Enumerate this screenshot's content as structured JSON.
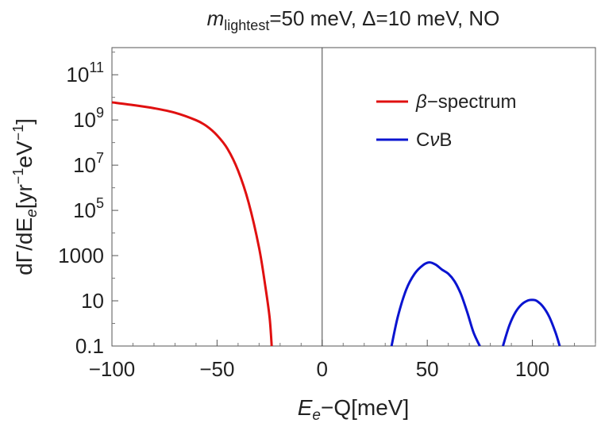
{
  "chart_data": {
    "type": "line",
    "title": {
      "var": "m",
      "sub": "lightest",
      "rest": "=50 meV, Δ=10 meV, NO"
    },
    "xlabel": {
      "var": "E",
      "sub": "e",
      "rest": "−Q[meV]"
    },
    "ylabel": {
      "p1": "dΓ/dE",
      "sub1": "e",
      "p2": "[yr",
      "sup1": "−1",
      "p3": "eV",
      "sup2": "−1",
      "p4": "]"
    },
    "xlim": [
      -100,
      130
    ],
    "ylim_log10": [
      -1,
      12.2
    ],
    "y_scale": "log",
    "xticks": [
      {
        "value": -100,
        "label": "−100"
      },
      {
        "value": -50,
        "label": "−50"
      },
      {
        "value": 0,
        "label": "0"
      },
      {
        "value": 50,
        "label": "50"
      },
      {
        "value": 100,
        "label": "100"
      }
    ],
    "yticks": [
      {
        "log10": -1,
        "label": "0.1"
      },
      {
        "log10": 1,
        "label": "10"
      },
      {
        "log10": 3,
        "label": "1000"
      },
      {
        "log10": 5,
        "base": "10",
        "exp": "5"
      },
      {
        "log10": 7,
        "base": "10",
        "exp": "7"
      },
      {
        "log10": 9,
        "base": "10",
        "exp": "9"
      },
      {
        "log10": 11,
        "base": "10",
        "exp": "11"
      }
    ],
    "vertical_line_x": 0,
    "legend": {
      "position": "top-right",
      "entries": [
        {
          "prefix": "β",
          "label": "−spectrum",
          "color": "#e01010"
        },
        {
          "prefix": "C",
          "italic": "ν",
          "label": "B",
          "color": "#0a14d0"
        }
      ]
    },
    "series": [
      {
        "name": "β-spectrum",
        "color": "#e01010",
        "x": [
          -100,
          -90,
          -80,
          -70,
          -60,
          -55,
          -50,
          -45,
          -40,
          -35,
          -30,
          -27,
          -25,
          -24
        ],
        "log10y": [
          9.78,
          9.66,
          9.52,
          9.32,
          8.99,
          8.73,
          8.32,
          7.72,
          6.76,
          5.35,
          3.34,
          1.62,
          0.26,
          -1.0
        ]
      },
      {
        "name": "CνB peak 1",
        "color": "#0a14d0",
        "x": [
          33,
          36,
          40,
          44,
          48,
          51,
          54,
          57,
          60,
          63,
          66,
          69,
          72,
          75
        ],
        "log10y": [
          -1.0,
          0.3,
          1.5,
          2.2,
          2.58,
          2.7,
          2.6,
          2.38,
          2.2,
          1.86,
          1.3,
          0.5,
          -0.4,
          -1.0
        ]
      },
      {
        "name": "CνB peak 2",
        "color": "#0a14d0",
        "x": [
          86,
          89,
          92,
          95,
          98,
          100,
          102,
          105,
          108,
          111,
          113
        ],
        "log10y": [
          -1.0,
          -0.1,
          0.5,
          0.85,
          1.02,
          1.04,
          1.0,
          0.75,
          0.3,
          -0.4,
          -1.0
        ]
      }
    ]
  }
}
